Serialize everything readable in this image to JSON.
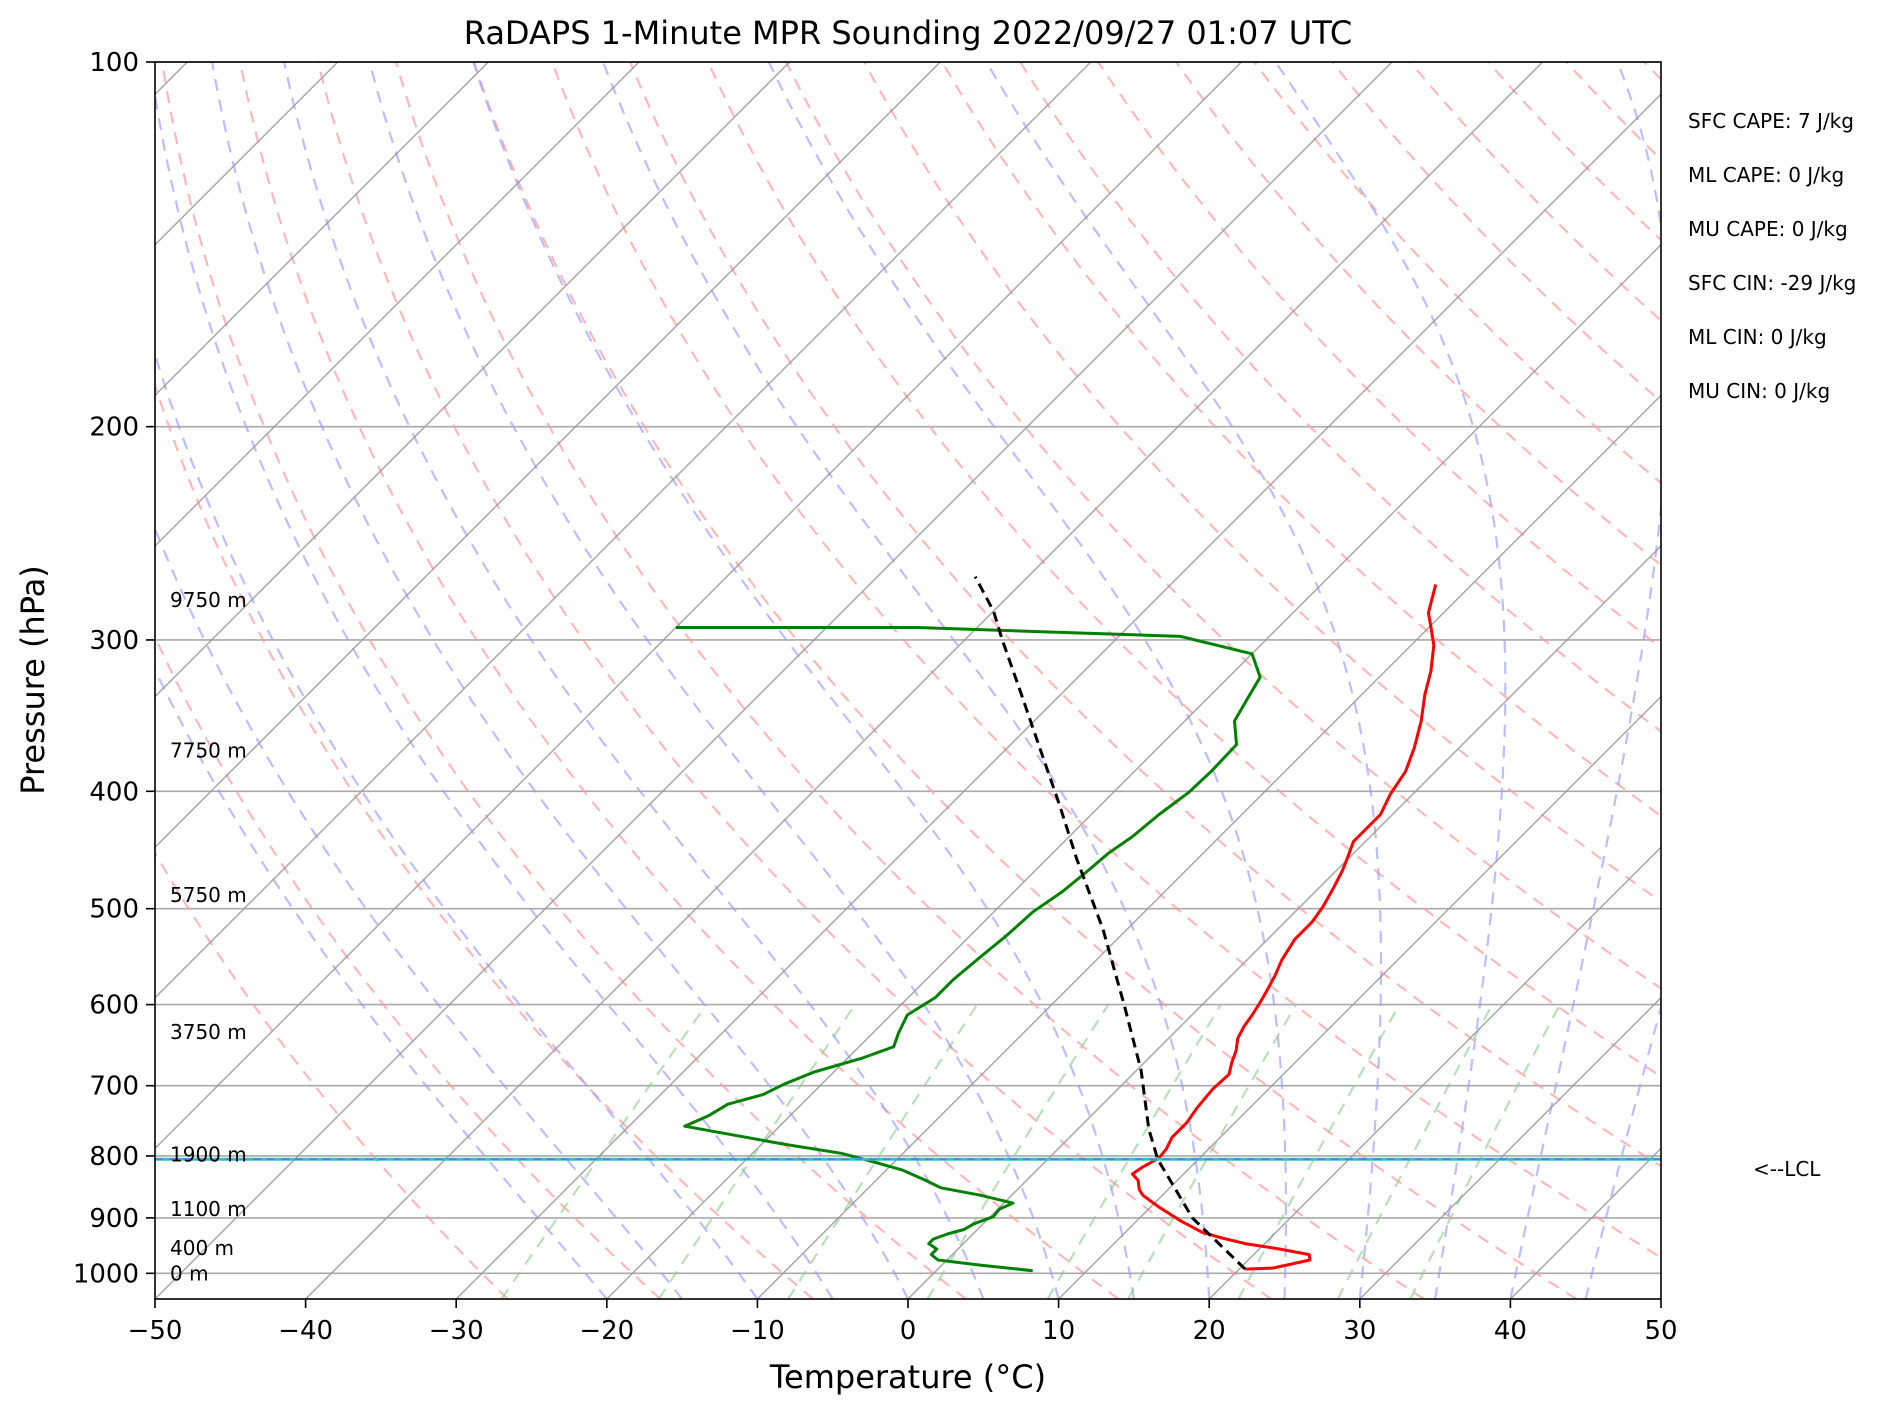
{
  "chart_data": {
    "type": "line",
    "title": "RaDAPS 1-Minute MPR Sounding 2022/09/27 01:07 UTC",
    "xlabel": "Temperature (°C)",
    "ylabel": "Pressure (hPa)",
    "xlim": [
      -50,
      50
    ],
    "ylim": [
      1050,
      100
    ],
    "y_scale": "log",
    "grid": true,
    "x_ticks": [
      -50,
      -40,
      -30,
      -20,
      -10,
      0,
      10,
      20,
      30,
      40,
      50
    ],
    "x_tick_labels": [
      "−50",
      "−40",
      "−30",
      "−20",
      "−10",
      "0",
      "10",
      "20",
      "30",
      "40",
      "50"
    ],
    "y_ticks": [
      1000,
      900,
      800,
      700,
      600,
      500,
      400,
      300,
      200,
      100
    ],
    "y_tick_labels": [
      "1000",
      "900",
      "800",
      "700",
      "600",
      "500",
      "400",
      "300",
      "200",
      "100"
    ],
    "height_labels": [
      {
        "text": "9750 m",
        "p": 278
      },
      {
        "text": "7750 m",
        "p": 370
      },
      {
        "text": "5750 m",
        "p": 487
      },
      {
        "text": "3750 m",
        "p": 632
      },
      {
        "text": "1900 m",
        "p": 798
      },
      {
        "text": "1100 m",
        "p": 885
      },
      {
        "text": "400 m",
        "p": 953
      },
      {
        "text": "0 m",
        "p": 1000
      }
    ],
    "indices": [
      "SFC CAPE: 7 J/kg",
      "ML CAPE: 0 J/kg",
      "MU CAPE: 0 J/kg",
      "SFC CIN: -29 J/kg",
      "ML CIN: 0 J/kg",
      "MU CIN: 0 J/kg"
    ],
    "lcl": {
      "label": "<--LCL",
      "p": 805
    },
    "series": [
      {
        "role": "temperature",
        "color": "#ff0000",
        "points": [
          [
            20.4,
            992
          ],
          [
            22.2,
            990
          ],
          [
            24.1,
            975
          ],
          [
            23.7,
            965
          ],
          [
            21.4,
            955
          ],
          [
            18.7,
            945
          ],
          [
            16.8,
            935
          ],
          [
            15.1,
            925
          ],
          [
            12.9,
            905
          ],
          [
            10.4,
            880
          ],
          [
            8.7,
            862
          ],
          [
            8.1,
            853
          ],
          [
            7.4,
            838
          ],
          [
            6.6,
            828
          ],
          [
            6.8,
            818
          ],
          [
            7.3,
            803
          ],
          [
            7.2,
            790
          ],
          [
            6.8,
            772
          ],
          [
            6.8,
            751
          ],
          [
            6.5,
            730
          ],
          [
            6.3,
            705
          ],
          [
            6.4,
            685
          ],
          [
            5.8,
            670
          ],
          [
            5.3,
            655
          ],
          [
            4.6,
            640
          ],
          [
            4.2,
            625
          ],
          [
            4.0,
            612
          ],
          [
            3.7,
            598
          ],
          [
            3.4,
            586
          ],
          [
            2.9,
            568
          ],
          [
            2.3,
            551
          ],
          [
            1.8,
            530
          ],
          [
            1.8,
            513
          ],
          [
            1.5,
            498
          ],
          [
            1.0,
            482
          ],
          [
            0.4,
            465
          ],
          [
            -0.3,
            450
          ],
          [
            -0.8,
            440
          ],
          [
            -0.8,
            432
          ],
          [
            -0.8,
            418
          ],
          [
            -1.5,
            402
          ],
          [
            -2.0,
            385
          ],
          [
            -3.0,
            368
          ],
          [
            -4.3,
            350
          ],
          [
            -5.8,
            333
          ],
          [
            -7.0,
            318
          ],
          [
            -8.5,
            303
          ],
          [
            -10.0,
            292
          ],
          [
            -11.0,
            285
          ],
          [
            -12.4,
            270
          ]
        ]
      },
      {
        "role": "dewpoint",
        "color": "#008000",
        "points": [
          [
            6.4,
            995
          ],
          [
            2.7,
            985
          ],
          [
            -0.6,
            975
          ],
          [
            -1.4,
            965
          ],
          [
            -1.4,
            955
          ],
          [
            -2.3,
            945
          ],
          [
            -2.3,
            937
          ],
          [
            -1.7,
            928
          ],
          [
            -0.9,
            920
          ],
          [
            -0.6,
            910
          ],
          [
            0.2,
            898
          ],
          [
            0.1,
            885
          ],
          [
            0.6,
            875
          ],
          [
            -2.1,
            862
          ],
          [
            -5.2,
            850
          ],
          [
            -6.7,
            838
          ],
          [
            -8.9,
            822
          ],
          [
            -11.2,
            810
          ],
          [
            -14.1,
            796
          ],
          [
            -18.6,
            782
          ],
          [
            -26.3,
            756
          ],
          [
            -25.4,
            741
          ],
          [
            -24.9,
            725
          ],
          [
            -23.2,
            712
          ],
          [
            -22.5,
            698
          ],
          [
            -21.3,
            682
          ],
          [
            -19.0,
            664
          ],
          [
            -17.7,
            650
          ],
          [
            -18.3,
            633
          ],
          [
            -18.9,
            612
          ],
          [
            -18.2,
            592
          ],
          [
            -18.2,
            572
          ],
          [
            -17.9,
            548
          ],
          [
            -17.6,
            527
          ],
          [
            -17.4,
            503
          ],
          [
            -16.8,
            484
          ],
          [
            -16.5,
            466
          ],
          [
            -16.3,
            450
          ],
          [
            -15.8,
            436
          ],
          [
            -15.5,
            418
          ],
          [
            -15.0,
            401
          ],
          [
            -14.9,
            385
          ],
          [
            -15.0,
            366
          ],
          [
            -16.7,
            350
          ],
          [
            -17.3,
            336
          ],
          [
            -17.9,
            322
          ],
          [
            -20.0,
            308
          ],
          [
            -25.9,
            298
          ],
          [
            -44.0,
            293
          ],
          [
            -60.0,
            293
          ]
        ]
      },
      {
        "role": "parcel",
        "color": "#000000",
        "dashed": true,
        "points": [
          [
            20.4,
            992
          ],
          [
            13.5,
            900
          ],
          [
            7.3,
            805
          ],
          [
            4.7,
            760
          ],
          [
            0.3,
            680
          ],
          [
            -5.2,
            600
          ],
          [
            -11.6,
            520
          ],
          [
            -18.0,
            455
          ],
          [
            -22.8,
            410
          ],
          [
            -27.0,
            375
          ],
          [
            -33.0,
            330
          ],
          [
            -37.5,
            300
          ],
          [
            -40.0,
            284
          ],
          [
            -43.5,
            266
          ]
        ]
      }
    ]
  }
}
